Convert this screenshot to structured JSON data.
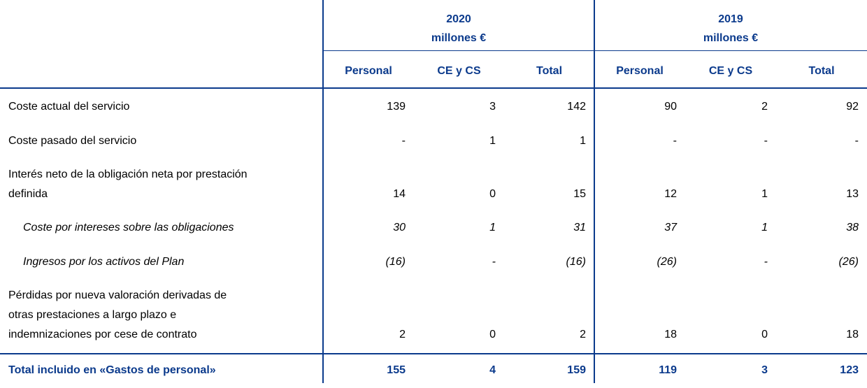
{
  "header": {
    "groups": [
      {
        "year": "2020",
        "unit": "millones €"
      },
      {
        "year": "2019",
        "unit": "millones €"
      }
    ],
    "columns": [
      "Personal",
      "CE y CS",
      "Total",
      "Personal",
      "CE y CS",
      "Total"
    ]
  },
  "table": {
    "rows": [
      {
        "label": [
          "Coste actual del servicio"
        ],
        "values": [
          "139",
          "3",
          "142",
          "90",
          "2",
          "92"
        ]
      },
      {
        "label": [
          "Coste pasado del servicio"
        ],
        "values": [
          "-",
          "1",
          "1",
          "-",
          "-",
          "-"
        ]
      },
      {
        "label": [
          "Interés neto de la obligación neta por prestación",
          "definida"
        ],
        "values": [
          "14",
          "0",
          "15",
          "12",
          "1",
          "13"
        ]
      },
      {
        "label": [
          "Coste por intereses sobre las obligaciones"
        ],
        "values": [
          "30",
          "1",
          "31",
          "37",
          "1",
          "38"
        ]
      },
      {
        "label": [
          "Ingresos por los activos del Plan"
        ],
        "values": [
          "(16)",
          "-",
          "(16)",
          "(26)",
          "-",
          "(26)"
        ]
      },
      {
        "label": [
          "Pérdidas por nueva valoración derivadas de",
          "otras prestaciones a largo plazo e",
          "indemnizaciones por cese de contrato"
        ],
        "values": [
          "2",
          "0",
          "2",
          "18",
          "0",
          "18"
        ]
      }
    ],
    "total": {
      "label": "Total incluido en «Gastos de personal»",
      "values": [
        "155",
        "4",
        "159",
        "119",
        "3",
        "123"
      ]
    }
  }
}
